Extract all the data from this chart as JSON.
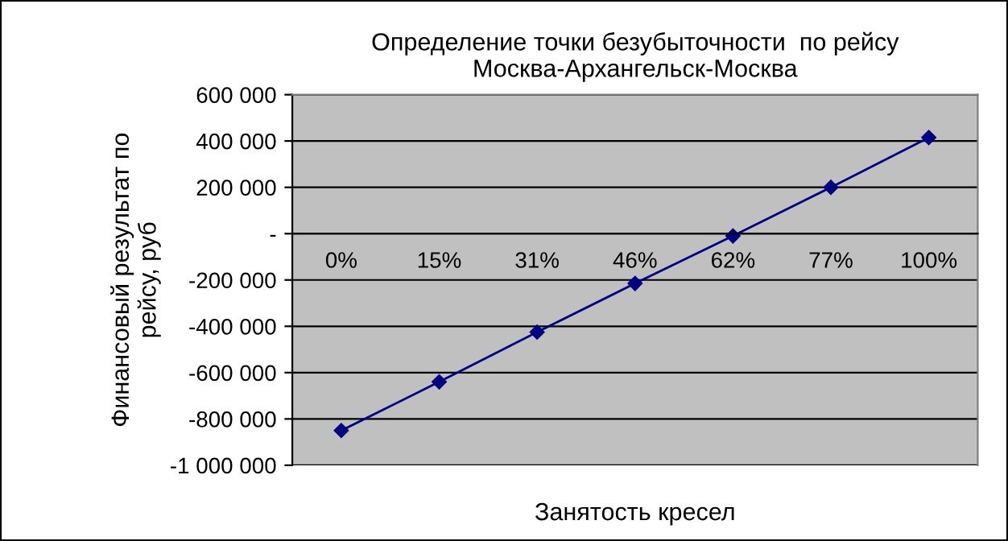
{
  "chart_data": {
    "type": "line",
    "title": "Определение точки безубыточности  по рейсу\nМосква-Архангельск-Москва",
    "xlabel": "Занятость кресел",
    "ylabel": "Финансовый результат по\nрейсу, руб",
    "categories": [
      "0%",
      "15%",
      "31%",
      "46%",
      "62%",
      "77%",
      "100%"
    ],
    "series": [
      {
        "color": "#000080",
        "values": [
          -850000,
          -640000,
          -425000,
          -215000,
          -10000,
          200000,
          415000
        ]
      }
    ],
    "ylim": [
      -1000000,
      600000
    ],
    "yticks": [
      {
        "value": -1000000,
        "label": "-1 000 000"
      },
      {
        "value": -800000,
        "label": "-800 000"
      },
      {
        "value": -600000,
        "label": "-600 000"
      },
      {
        "value": -400000,
        "label": "-400 000"
      },
      {
        "value": -200000,
        "label": "-200 000"
      },
      {
        "value": 0,
        "label": "-"
      },
      {
        "value": 200000,
        "label": "200 000"
      },
      {
        "value": 400000,
        "label": "400 000"
      },
      {
        "value": 600000,
        "label": "600 000"
      }
    ],
    "grid": "y",
    "marker": "diamond",
    "line_style": "solid",
    "legend": false
  }
}
